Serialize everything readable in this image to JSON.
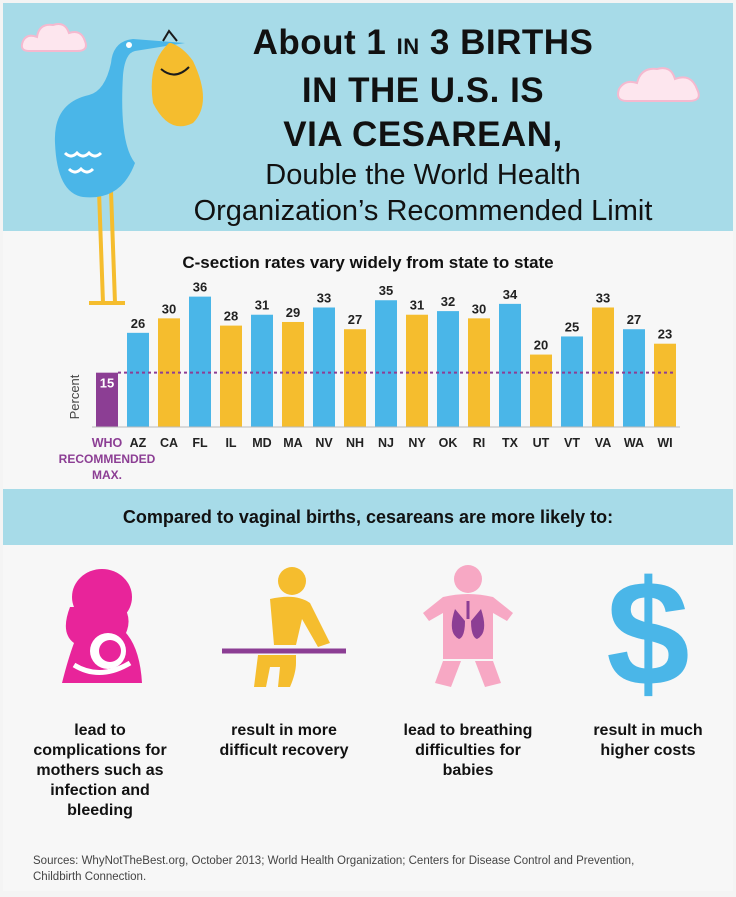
{
  "header": {
    "title_about": "About 1",
    "title_in": "IN",
    "title_3": "3 BIRTHS",
    "title_line2": "IN THE U.S. IS",
    "title_line3": "VIA CESAREAN,",
    "subtitle_line1": "Double the World Health",
    "subtitle_line2": "Organization’s Recommended Limit"
  },
  "chart_data": {
    "type": "bar",
    "title": "C-section rates vary widely from state to state",
    "ylabel": "Percent",
    "ylim": [
      0,
      37
    ],
    "categories": [
      "WHO",
      "AZ",
      "CA",
      "FL",
      "IL",
      "MD",
      "MA",
      "NV",
      "NH",
      "NJ",
      "NY",
      "OK",
      "RI",
      "TX",
      "UT",
      "VT",
      "VA",
      "WA",
      "WI"
    ],
    "values": [
      15,
      26,
      30,
      36,
      28,
      31,
      29,
      33,
      27,
      35,
      31,
      32,
      30,
      34,
      20,
      25,
      33,
      27,
      23
    ],
    "bar_colors": [
      "#8c3e94",
      "#4ab6e8",
      "#f5bd2e",
      "#4ab6e8",
      "#f5bd2e",
      "#4ab6e8",
      "#f5bd2e",
      "#4ab6e8",
      "#f5bd2e",
      "#4ab6e8",
      "#f5bd2e",
      "#4ab6e8",
      "#f5bd2e",
      "#4ab6e8",
      "#f5bd2e",
      "#4ab6e8",
      "#f5bd2e",
      "#4ab6e8",
      "#f5bd2e"
    ],
    "reference_line": 15,
    "reference_color": "#8c3e94",
    "who_label_line2": "RECOMMENDED",
    "who_label_line3": "MAX."
  },
  "compare": {
    "heading": "Compared to vaginal births, cesareans are more likely to:",
    "items": [
      {
        "icon": "mother-baby-icon",
        "color": "#e8249a",
        "lines": [
          "lead to",
          "complications for",
          "mothers such as",
          "infection and",
          "bleeding"
        ]
      },
      {
        "icon": "recovery-person-icon",
        "color": "#f5bd2e",
        "lines": [
          "result in more",
          "difficult recovery"
        ]
      },
      {
        "icon": "baby-lungs-icon",
        "color": "#f7a8c4",
        "lines": [
          "lead to breathing",
          "difficulties for",
          "babies"
        ]
      },
      {
        "icon": "dollar-sign-icon",
        "color": "#4ab6e8",
        "lines": [
          "result in much",
          "higher costs"
        ]
      }
    ]
  },
  "sources": {
    "line1": "Sources: WhyNotTheBest.org, October 2013; World Health Organization; Centers for Disease Control and Prevention,",
    "line2": "Childbirth Connection."
  }
}
